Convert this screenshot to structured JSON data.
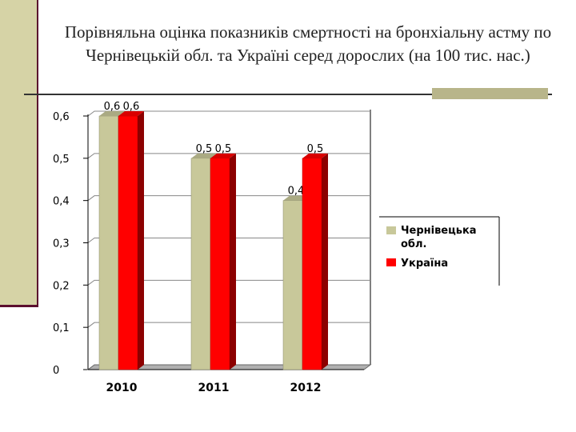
{
  "slide": {
    "title": "Порівняльна оцінка показників смертності на бронхіальну астму по Чернівецькій обл. та Україні серед дорослих (на 100 тис. нас.)"
  },
  "colors": {
    "accent_bar": "#d6d3a6",
    "accent_line": "#5b0f2e",
    "series_1": "#c8c89a",
    "series_2": "#ff0000"
  },
  "chart_data": {
    "type": "bar",
    "title": "",
    "xlabel": "",
    "ylabel": "",
    "categories": [
      "2010",
      "2011",
      "2012"
    ],
    "ylim": [
      0,
      0.6
    ],
    "yticks": [
      "0",
      "0,1",
      "0,2",
      "0,3",
      "0,4",
      "0,5",
      "0,6"
    ],
    "grid": true,
    "legend_position": "right",
    "series": [
      {
        "name": "Чернівецька обл.",
        "values": [
          0.6,
          0.5,
          0.4
        ],
        "labels": [
          "0,6",
          "0,5",
          "0,4"
        ],
        "color": "#c8c89a"
      },
      {
        "name": "Україна",
        "values": [
          0.6,
          0.5,
          0.5
        ],
        "labels": [
          "0,6",
          "0,5",
          "0,5"
        ],
        "color": "#ff0000"
      }
    ]
  }
}
